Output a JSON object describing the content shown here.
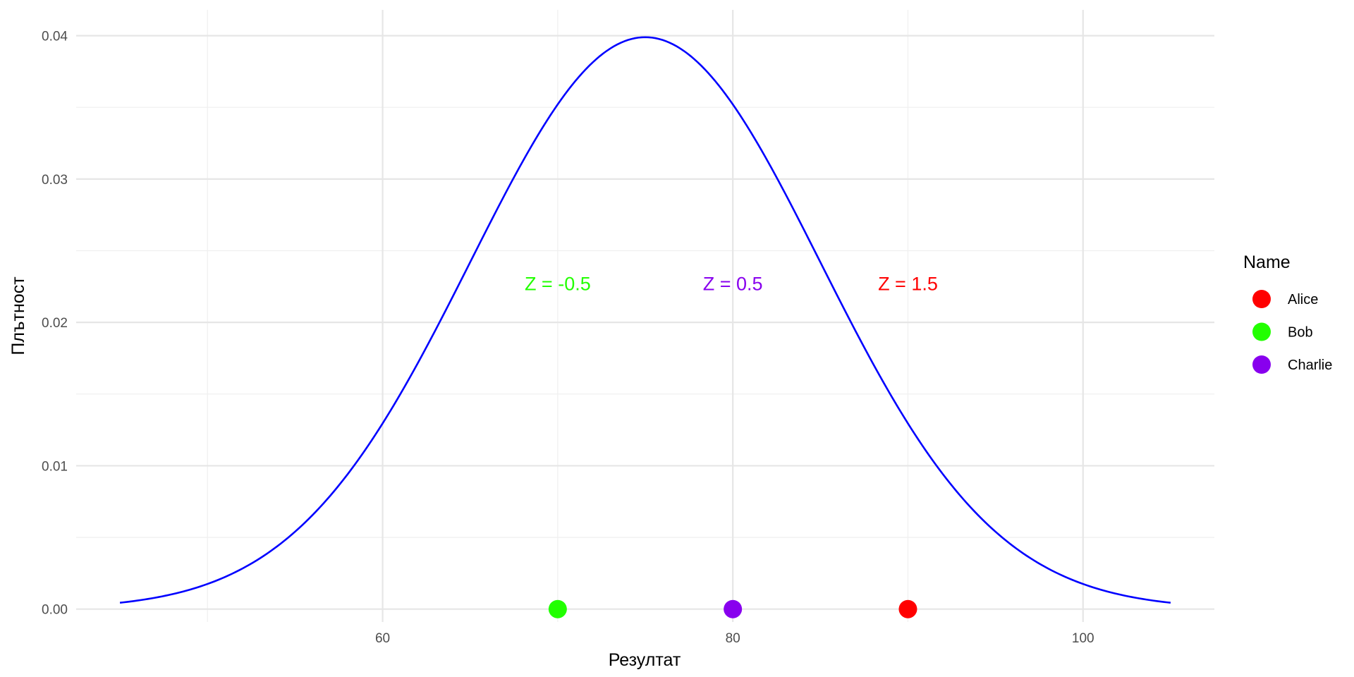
{
  "chart_data": {
    "type": "line",
    "title": "",
    "xlabel": "Резултат",
    "ylabel": "Плътност",
    "xlim": [
      42.5,
      107.5
    ],
    "ylim": [
      -0.0009,
      0.0418
    ],
    "x_ticks": [
      60,
      80,
      100
    ],
    "x_tick_labels": [
      "60",
      "80",
      "100"
    ],
    "y_ticks": [
      0.0,
      0.01,
      0.02,
      0.03,
      0.04
    ],
    "y_tick_labels": [
      "0.00",
      "0.01",
      "0.02",
      "0.03",
      "0.04"
    ],
    "grid": true,
    "curve": {
      "distribution": "normal",
      "mean": 75,
      "sd": 10,
      "x_range": [
        45,
        105
      ],
      "color": "#0000FF"
    },
    "points": [
      {
        "name": "Alice",
        "x": 90,
        "y": 0,
        "z_label": "Z = 1.5",
        "color": "#FF0000"
      },
      {
        "name": "Bob",
        "x": 70,
        "y": 0,
        "z_label": "Z = -0.5",
        "color": "#22FF00"
      },
      {
        "name": "Charlie",
        "x": 80,
        "y": 0,
        "z_label": "Z = 0.5",
        "color": "#8800EE"
      }
    ],
    "z_label_y": 0.0227,
    "legend": {
      "title": "Name",
      "placement": "right",
      "entries": [
        {
          "label": "Alice",
          "color": "#FF0000"
        },
        {
          "label": "Bob",
          "color": "#22FF00"
        },
        {
          "label": "Charlie",
          "color": "#8800EE"
        }
      ]
    }
  }
}
